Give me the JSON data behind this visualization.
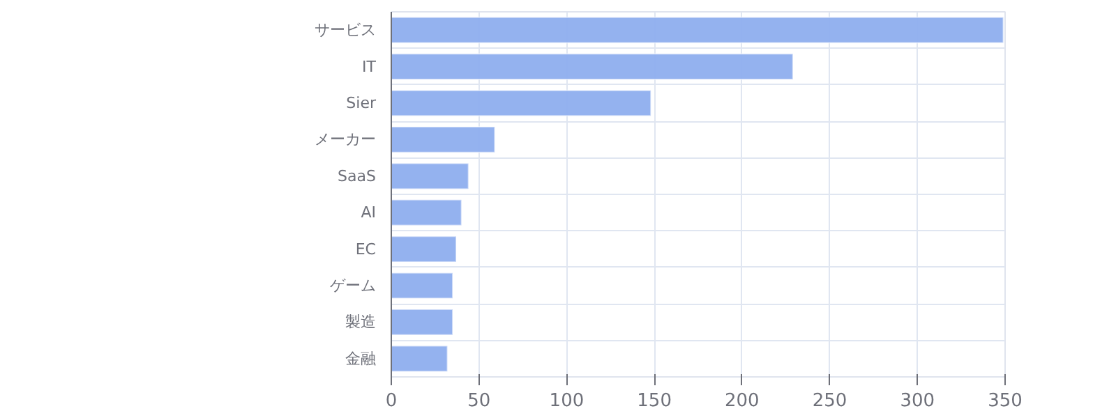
{
  "chart_data": {
    "type": "bar",
    "orientation": "horizontal",
    "categories": [
      "サービス",
      "IT",
      "Sier",
      "メーカー",
      "SaaS",
      "AI",
      "EC",
      "ゲーム",
      "製造",
      "金融"
    ],
    "values": [
      349,
      229,
      148,
      59,
      44,
      40,
      37,
      35,
      35,
      32
    ],
    "color": "#8eaeee",
    "xlim": [
      0,
      350
    ],
    "xticks": [
      0,
      50,
      100,
      150,
      200,
      250,
      300,
      350
    ],
    "grid": true
  }
}
